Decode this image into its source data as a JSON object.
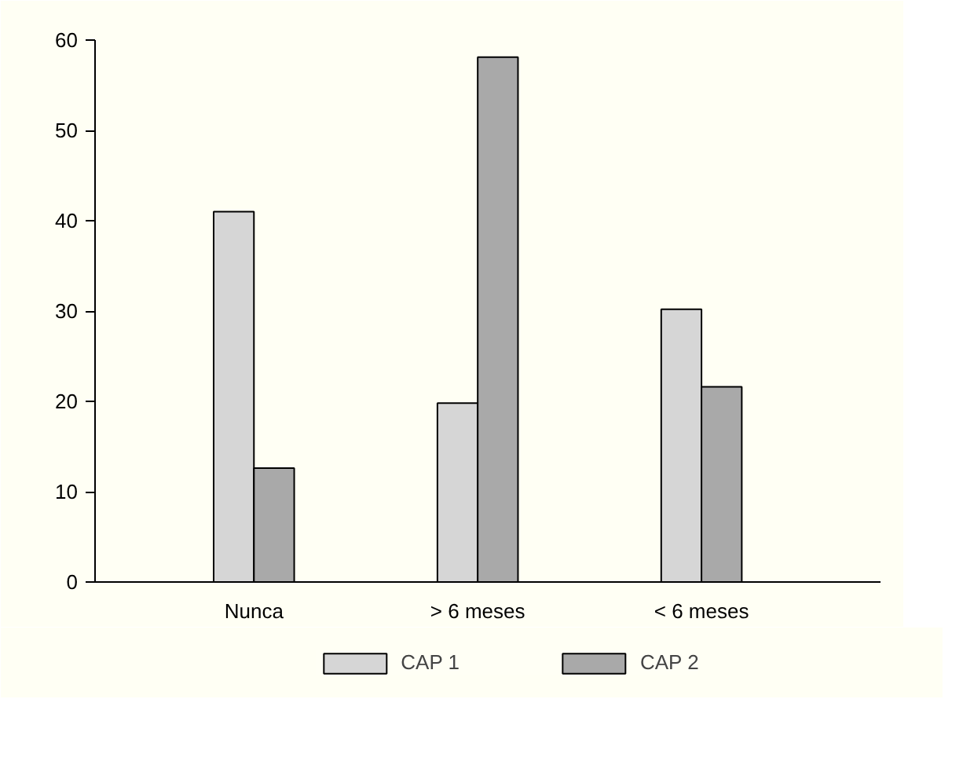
{
  "chart_data": {
    "type": "bar",
    "categories": [
      "Nunca",
      "> 6 meses",
      "< 6 meses"
    ],
    "series": [
      {
        "name": "CAP 1",
        "color": "#d6d6d6",
        "values": [
          41.0,
          19.8,
          30.2
        ]
      },
      {
        "name": "CAP 2",
        "color": "#a9a9a9",
        "values": [
          12.6,
          58.1,
          21.6
        ]
      }
    ],
    "ylim": [
      0,
      60
    ],
    "yticks": [
      0,
      10,
      20,
      30,
      40,
      50,
      60
    ],
    "grid": false,
    "legend": "bottom"
  }
}
